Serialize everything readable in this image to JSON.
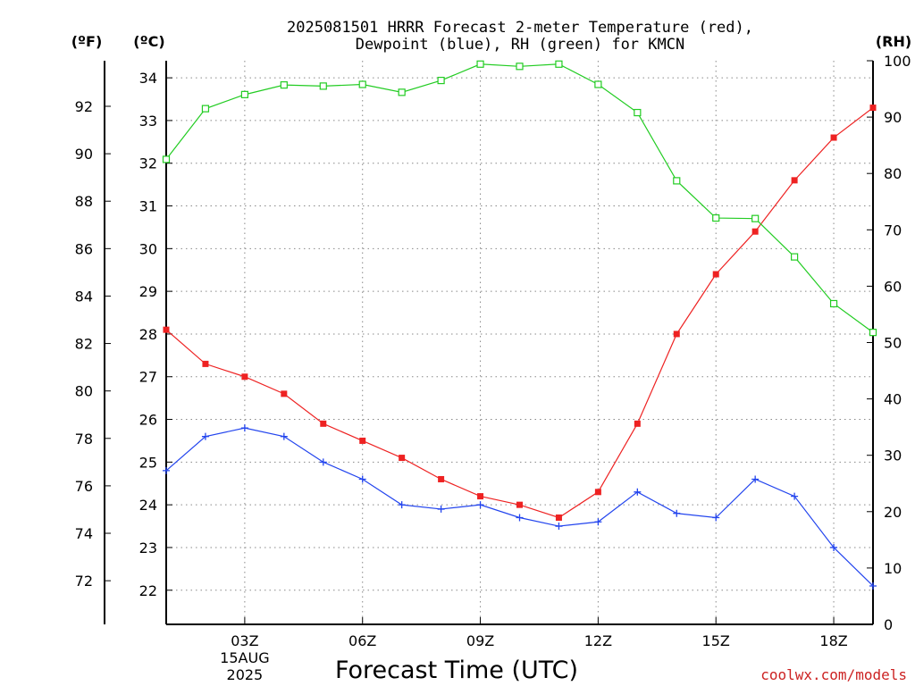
{
  "title_line1": "2025081501 HRRR Forecast 2-meter Temperature (red),",
  "title_line2": "Dewpoint (blue), RH (green) for KMCN",
  "unit_left_f": "(ºF)",
  "unit_left_c": "(ºC)",
  "unit_right_rh": "(RH)",
  "watermark": "coolwx.com/models",
  "colors": {
    "temperature": "#ee2222",
    "dewpoint": "#2244ee",
    "rh": "#22cc22",
    "grid": "#888888",
    "axis": "#000000"
  },
  "chart_data": {
    "type": "line",
    "xlabel": "Forecast Time (UTC)",
    "x_range_hours": [
      1,
      19
    ],
    "x_ticks": [
      {
        "hour": 3,
        "label": "03Z",
        "sub1": "15AUG",
        "sub2": "2025"
      },
      {
        "hour": 6,
        "label": "06Z"
      },
      {
        "hour": 9,
        "label": "09Z"
      },
      {
        "hour": 12,
        "label": "12Z"
      },
      {
        "hour": 15,
        "label": "15Z"
      },
      {
        "hour": 18,
        "label": "18Z"
      }
    ],
    "x": [
      1,
      2,
      3,
      4,
      5,
      6,
      7,
      8,
      9,
      10,
      11,
      12,
      13,
      14,
      15,
      16,
      17,
      18,
      19
    ],
    "y_celsius_range": [
      21.2,
      34.4
    ],
    "y_celsius_ticks": [
      22,
      23,
      24,
      25,
      26,
      27,
      28,
      29,
      30,
      31,
      32,
      33,
      34
    ],
    "y_fahrenheit_ticks": [
      72,
      74,
      76,
      78,
      80,
      82,
      84,
      86,
      88,
      90,
      92
    ],
    "y_rh_range": [
      0,
      100
    ],
    "y_rh_ticks": [
      0,
      10,
      20,
      30,
      40,
      50,
      60,
      70,
      80,
      90,
      100
    ],
    "grid": true,
    "series": [
      {
        "name": "Temperature",
        "axis": "celsius",
        "marker": "filled-square",
        "values": [
          28.1,
          27.3,
          27.0,
          26.6,
          25.9,
          25.5,
          25.1,
          24.6,
          24.2,
          24.0,
          23.7,
          24.3,
          25.9,
          28.0,
          29.4,
          30.4,
          31.6,
          32.6,
          33.3
        ]
      },
      {
        "name": "Dewpoint",
        "axis": "celsius",
        "marker": "plus",
        "values": [
          24.8,
          25.6,
          25.8,
          25.6,
          25.0,
          24.6,
          24.0,
          23.9,
          24.0,
          23.7,
          23.5,
          23.6,
          24.3,
          23.8,
          23.7,
          24.6,
          24.2,
          23.0,
          22.1
        ]
      },
      {
        "name": "RH",
        "axis": "rh",
        "marker": "open-square",
        "values": [
          82.5,
          91.5,
          94.0,
          95.7,
          95.5,
          95.8,
          94.4,
          96.5,
          99.4,
          99.0,
          99.4,
          95.8,
          90.8,
          78.7,
          72.1,
          72.0,
          65.2,
          56.9,
          51.8
        ]
      }
    ]
  }
}
